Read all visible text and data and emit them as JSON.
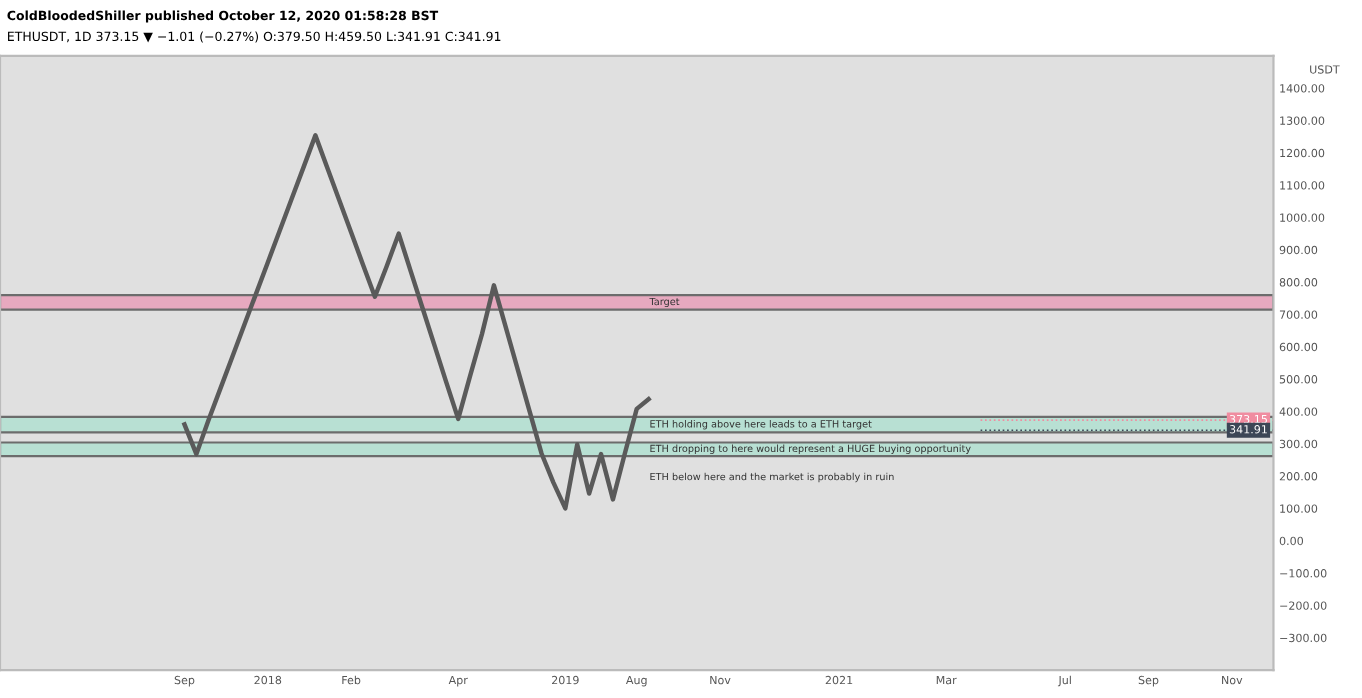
{
  "chart_data": {
    "type": "line",
    "title": "ColdBloodedShiller published October 12, 2020 01:58:28 BST",
    "subtitle": "ETHUSDT, 1D 373.15 ▼ −1.01 (−0.27%) O:379.50 H:459.50 L:341.91 C:341.91",
    "ylabel": "USDT",
    "categories": [
      null,
      null,
      null,
      null,
      null,
      null,
      null,
      null,
      null,
      null,
      null,
      null,
      null,
      null,
      null,
      "Sep",
      null,
      null,
      null,
      null,
      null,
      null,
      "2018",
      null,
      null,
      null,
      null,
      null,
      null,
      "Feb",
      null,
      null,
      null,
      null,
      null,
      null,
      null,
      null,
      "Apr",
      null,
      null,
      null,
      null,
      null,
      null,
      null,
      null,
      "2019",
      null,
      null,
      null,
      null,
      null,
      "Aug",
      null,
      null,
      null,
      null,
      null,
      null,
      "Nov",
      null,
      null,
      null,
      null,
      null,
      null,
      null,
      null,
      null,
      "2021",
      null,
      null,
      null,
      null,
      null,
      null,
      null,
      null,
      "Mar",
      null,
      null,
      null,
      null,
      null,
      null,
      null,
      null,
      null,
      "Jul",
      null,
      null,
      null,
      null,
      null,
      null,
      "Sep",
      null,
      null,
      null,
      null,
      null,
      null,
      "Nov",
      null,
      null,
      null
    ],
    "series": [
      {
        "color": "#5a5a5a",
        "values": [
          null,
          null,
          null,
          null,
          null,
          null,
          null,
          null,
          null,
          null,
          null,
          null,
          null,
          null,
          null,
          360,
          268,
          371,
          469,
          567,
          665,
          763,
          861,
          959,
          1057,
          1155,
          1254,
          1154,
          1054,
          954,
          854,
          755,
          850,
          950,
          835,
          720,
          605,
          490,
          377,
          510,
          640,
          790,
          660,
          530,
          400,
          270,
          180,
          100,
          298,
          146,
          268,
          128,
          270,
          408,
          438,
          null,
          null,
          null,
          null,
          null,
          null,
          null,
          null,
          null,
          null,
          null,
          null,
          null,
          null,
          null,
          null,
          null,
          null,
          null,
          null,
          null,
          null,
          null,
          null,
          null,
          null,
          null,
          null,
          null,
          null,
          null,
          null,
          null,
          null,
          null,
          null,
          null,
          null,
          null,
          null,
          null,
          null,
          null,
          null,
          null,
          null,
          null,
          null,
          null,
          null,
          null,
          null
        ]
      }
    ],
    "ylim": [
      -400,
      1500
    ],
    "yticks": [
      {
        "value": 1400,
        "label": "1400.00"
      },
      {
        "value": 1300,
        "label": "1300.00"
      },
      {
        "value": 1200,
        "label": "1200.00"
      },
      {
        "value": 1100,
        "label": "1100.00"
      },
      {
        "value": 1000,
        "label": "1000.00"
      },
      {
        "value": 900,
        "label": "900.00"
      },
      {
        "value": 800,
        "label": "800.00"
      },
      {
        "value": 700,
        "label": "700.00"
      },
      {
        "value": 600,
        "label": "600.00"
      },
      {
        "value": 500,
        "label": "500.00"
      },
      {
        "value": 400,
        "label": "400.00"
      },
      {
        "value": 300,
        "label": "300.00"
      },
      {
        "value": 200,
        "label": "200.00"
      },
      {
        "value": 100,
        "label": "100.00"
      },
      {
        "value": 0,
        "label": "0.00"
      },
      {
        "value": -100,
        "label": "−100.00"
      },
      {
        "value": -200,
        "label": "−200.00"
      },
      {
        "value": -300,
        "label": "−300.00"
      }
    ],
    "bands": [
      {
        "axis": "y",
        "from": 715,
        "to": 760,
        "label": "Target",
        "color": "#e8a4bc"
      },
      {
        "axis": "y",
        "from": 335,
        "to": 383,
        "label": "ETH holding above here leads to a ETH target",
        "color": "#b4e0d2"
      },
      {
        "axis": "y",
        "from": 262,
        "to": 304,
        "label": "ETH dropping to here would represent a HUGE buying opportunity",
        "color": "#b4e0d2"
      }
    ],
    "ref_lines": [
      {
        "axis": "y",
        "value": 373.15,
        "label": "373.15",
        "color": "#f08ca0"
      },
      {
        "axis": "y",
        "value": 341.91,
        "label": "341.91",
        "color": "#3c4656"
      }
    ],
    "annotations": [
      "ETH below here and the market is probably in ruin"
    ],
    "grid": false,
    "legend": false
  }
}
